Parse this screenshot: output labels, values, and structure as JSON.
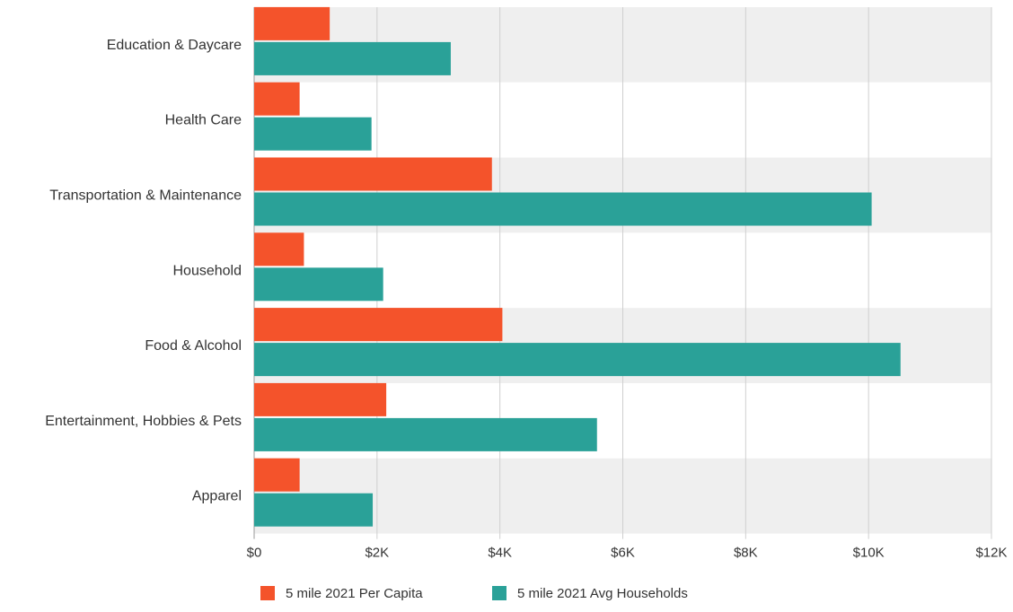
{
  "chart_data": {
    "type": "bar",
    "orientation": "horizontal",
    "categories": [
      "Education & Daycare",
      "Health Care",
      "Transportation & Maintenance",
      "Household",
      "Food & Alcohol",
      "Entertainment, Hobbies & Pets",
      "Apparel"
    ],
    "series": [
      {
        "name": "5 mile 2021 Per Capita",
        "color": "#f4532b",
        "values": [
          1230,
          740,
          3870,
          810,
          4040,
          2150,
          740
        ]
      },
      {
        "name": "5 mile 2021 Avg Households",
        "color": "#2aa198",
        "values": [
          3200,
          1910,
          10050,
          2100,
          10520,
          5580,
          1930
        ]
      }
    ],
    "x_ticks": [
      "$0",
      "$2K",
      "$4K",
      "$6K",
      "$8K",
      "$10K",
      "$12K"
    ],
    "xlim": [
      0,
      12000
    ],
    "grid": true,
    "band_colors": [
      "#efefef",
      "#ffffff"
    ],
    "legend_position": "bottom"
  }
}
